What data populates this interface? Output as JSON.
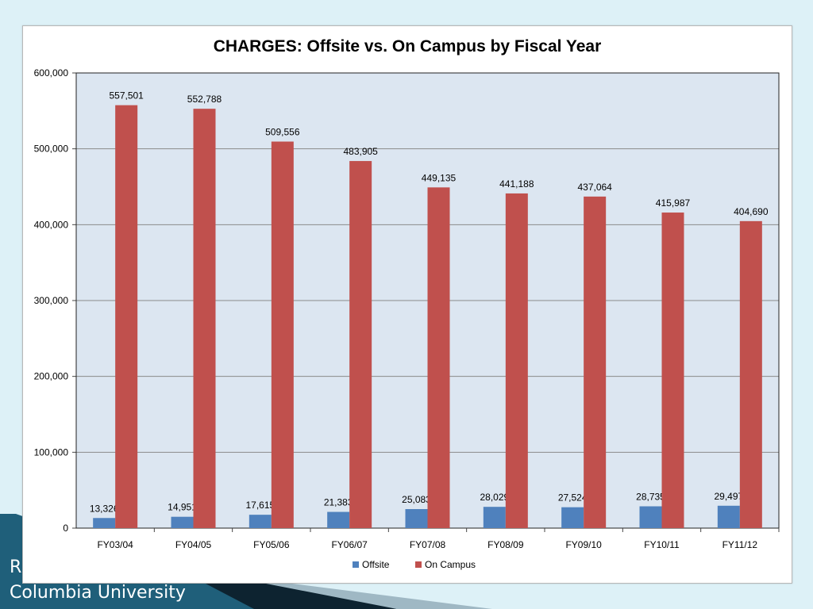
{
  "slide": {
    "footer_line1": "R",
    "footer_line2": "Columbia University"
  },
  "colors": {
    "offsite": "#4f81bd",
    "on_campus": "#c0504d",
    "plot_background": "#dce6f1",
    "slide_background": "#ddf1f7",
    "footer_band": "#1f5f7a"
  },
  "chart_data": {
    "type": "bar",
    "title": "CHARGES: Offsite vs. On Campus by Fiscal Year",
    "xlabel": "",
    "ylabel": "",
    "categories": [
      "FY03/04",
      "FY04/05",
      "FY05/06",
      "FY06/07",
      "FY07/08",
      "FY08/09",
      "FY09/10",
      "FY10/11",
      "FY11/12"
    ],
    "series": [
      {
        "name": "Offsite",
        "values": [
          13326,
          14951,
          17615,
          21383,
          25083,
          28029,
          27524,
          28735,
          29497
        ],
        "labels": [
          "13,326",
          "14,951",
          "17,615",
          "21,383",
          "25,083",
          "28,029",
          "27,524",
          "28,735",
          "29,497"
        ]
      },
      {
        "name": "On Campus",
        "values": [
          557501,
          552788,
          509556,
          483905,
          449135,
          441188,
          437064,
          415987,
          404690
        ],
        "labels": [
          "557,501",
          "552,788",
          "509,556",
          "483,905",
          "449,135",
          "441,188",
          "437,064",
          "415,987",
          "404,690"
        ]
      }
    ],
    "ylim": [
      0,
      600000
    ],
    "yticks": [
      0,
      100000,
      200000,
      300000,
      400000,
      500000,
      600000
    ],
    "ytick_labels": [
      "0",
      "100,000",
      "200,000",
      "300,000",
      "400,000",
      "500,000",
      "600,000"
    ],
    "grid": true,
    "legend_position": "bottom"
  }
}
